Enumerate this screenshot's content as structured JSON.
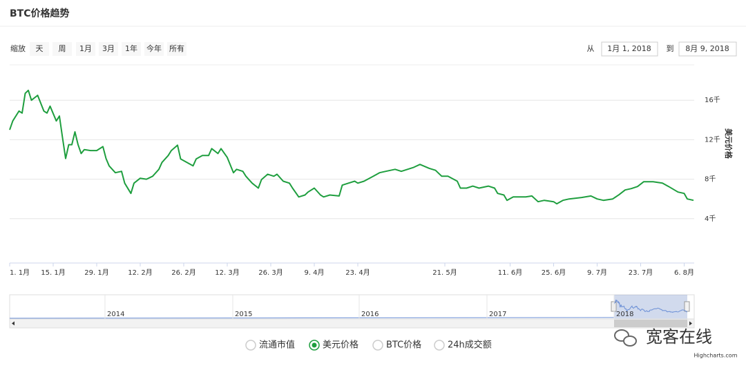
{
  "header": {
    "title": "BTC价格趋势"
  },
  "range_selector": {
    "label": "缩放",
    "buttons": [
      "天",
      "周",
      "1月",
      "3月",
      "1年",
      "今年",
      "所有"
    ],
    "from_label": "从",
    "from": "1月 1, 2018",
    "to_label": "到",
    "to": "8月 9, 2018"
  },
  "chart_data": {
    "type": "line",
    "y_axis_label": "美元价格",
    "x": [
      "2018-01-01",
      "2018-01-02",
      "2018-01-04",
      "2018-01-05",
      "2018-01-06",
      "2018-01-07",
      "2018-01-08",
      "2018-01-10",
      "2018-01-12",
      "2018-01-13",
      "2018-01-14",
      "2018-01-16",
      "2018-01-17",
      "2018-01-18",
      "2018-01-19",
      "2018-01-20",
      "2018-01-21",
      "2018-01-22",
      "2018-01-23",
      "2018-01-24",
      "2018-01-25",
      "2018-01-27",
      "2018-01-29",
      "2018-01-31",
      "2018-02-01",
      "2018-02-02",
      "2018-02-04",
      "2018-02-06",
      "2018-02-07",
      "2018-02-09",
      "2018-02-10",
      "2018-02-12",
      "2018-02-14",
      "2018-02-16",
      "2018-02-18",
      "2018-02-19",
      "2018-02-21",
      "2018-02-22",
      "2018-02-24",
      "2018-02-25",
      "2018-02-27",
      "2018-03-01",
      "2018-03-02",
      "2018-03-04",
      "2018-03-06",
      "2018-03-07",
      "2018-03-09",
      "2018-03-10",
      "2018-03-12",
      "2018-03-14",
      "2018-03-15",
      "2018-03-17",
      "2018-03-18",
      "2018-03-20",
      "2018-03-22",
      "2018-03-23",
      "2018-03-25",
      "2018-03-27",
      "2018-03-28",
      "2018-03-30",
      "2018-04-01",
      "2018-04-02",
      "2018-04-04",
      "2018-04-06",
      "2018-04-07",
      "2018-04-09",
      "2018-04-11",
      "2018-04-12",
      "2018-04-14",
      "2018-04-17",
      "2018-04-18",
      "2018-04-20",
      "2018-04-22",
      "2018-04-23",
      "2018-04-25",
      "2018-04-28",
      "2018-04-30",
      "2018-05-02",
      "2018-05-05",
      "2018-05-07",
      "2018-05-09",
      "2018-05-11",
      "2018-05-13",
      "2018-05-16",
      "2018-05-18",
      "2018-05-20",
      "2018-05-22",
      "2018-05-25",
      "2018-05-26",
      "2018-05-28",
      "2018-05-30",
      "2018-06-01",
      "2018-06-04",
      "2018-06-06",
      "2018-06-07",
      "2018-06-09",
      "2018-06-10",
      "2018-06-12",
      "2018-06-16",
      "2018-06-18",
      "2018-06-20",
      "2018-06-22",
      "2018-06-25",
      "2018-06-26",
      "2018-06-28",
      "2018-06-30",
      "2018-07-04",
      "2018-07-07",
      "2018-07-09",
      "2018-07-11",
      "2018-07-14",
      "2018-07-16",
      "2018-07-18",
      "2018-07-20",
      "2018-07-22",
      "2018-07-24",
      "2018-07-27",
      "2018-07-30",
      "2018-08-01",
      "2018-08-04",
      "2018-08-06",
      "2018-08-07",
      "2018-08-09"
    ],
    "series": [
      {
        "name": "美元价格",
        "color": "#1e9e3e",
        "values": [
          13000,
          13900,
          14900,
          14700,
          16700,
          17000,
          16000,
          16500,
          14900,
          14700,
          15400,
          13900,
          14400,
          12200,
          10100,
          11500,
          11500,
          12800,
          11500,
          10600,
          11000,
          10900,
          10900,
          11300,
          10100,
          9350,
          8660,
          8800,
          7600,
          6560,
          7600,
          8100,
          8000,
          8300,
          9000,
          9700,
          10400,
          10900,
          11450,
          10050,
          9700,
          9350,
          10050,
          10400,
          10400,
          11100,
          10600,
          11100,
          10200,
          8660,
          9000,
          8800,
          8300,
          7600,
          7100,
          7950,
          8500,
          8300,
          8500,
          7800,
          7600,
          7100,
          6200,
          6400,
          6700,
          7100,
          6400,
          6200,
          6400,
          6300,
          7400,
          7600,
          7800,
          7600,
          7800,
          8300,
          8660,
          8800,
          9000,
          8800,
          9000,
          9200,
          9500,
          9100,
          8900,
          8300,
          8300,
          7800,
          7100,
          7100,
          7300,
          7100,
          7300,
          7100,
          6560,
          6400,
          5860,
          6200,
          6200,
          6300,
          5720,
          5860,
          5720,
          5510,
          5860,
          6000,
          6150,
          6300,
          6000,
          5860,
          6000,
          6420,
          6910,
          7050,
          7260,
          7750,
          7750,
          7610,
          7260,
          6700,
          6560,
          6000,
          5860
        ]
      }
    ],
    "xlim": [
      "2018-01-01",
      "2018-08-09"
    ],
    "xticks": [
      {
        "value": "2018-01-01",
        "label": "1. 1月"
      },
      {
        "value": "2018-01-15",
        "label": "15. 1月"
      },
      {
        "value": "2018-01-29",
        "label": "29. 1月"
      },
      {
        "value": "2018-02-12",
        "label": "12. 2月"
      },
      {
        "value": "2018-02-26",
        "label": "26. 2月"
      },
      {
        "value": "2018-03-12",
        "label": "12. 3月"
      },
      {
        "value": "2018-03-26",
        "label": "26. 3月"
      },
      {
        "value": "2018-04-09",
        "label": "9. 4月"
      },
      {
        "value": "2018-04-23",
        "label": "23. 4月"
      },
      {
        "value": "2018-05-21",
        "label": "21. 5月"
      },
      {
        "value": "2018-06-11",
        "label": "11. 6月"
      },
      {
        "value": "2018-06-25",
        "label": "25. 6月"
      },
      {
        "value": "2018-07-09",
        "label": "9. 7月"
      },
      {
        "value": "2018-07-23",
        "label": "23. 7月"
      },
      {
        "value": "2018-08-06",
        "label": "6. 8月"
      }
    ],
    "ylim": [
      0,
      20000
    ],
    "yticks": [
      {
        "value": 4000,
        "label": "4千"
      },
      {
        "value": 8000,
        "label": "8千"
      },
      {
        "value": 12000,
        "label": "12千"
      },
      {
        "value": 16000,
        "label": "16千"
      }
    ],
    "grid": true
  },
  "navigator": {
    "labels": [
      "2014",
      "2015",
      "2016",
      "2017",
      "2018"
    ]
  },
  "legend": {
    "inactive": [
      "流通市值",
      "BTC价格",
      "24h成交额"
    ]
  },
  "watermark": "宽客在线",
  "credits": "Highcharts.com"
}
